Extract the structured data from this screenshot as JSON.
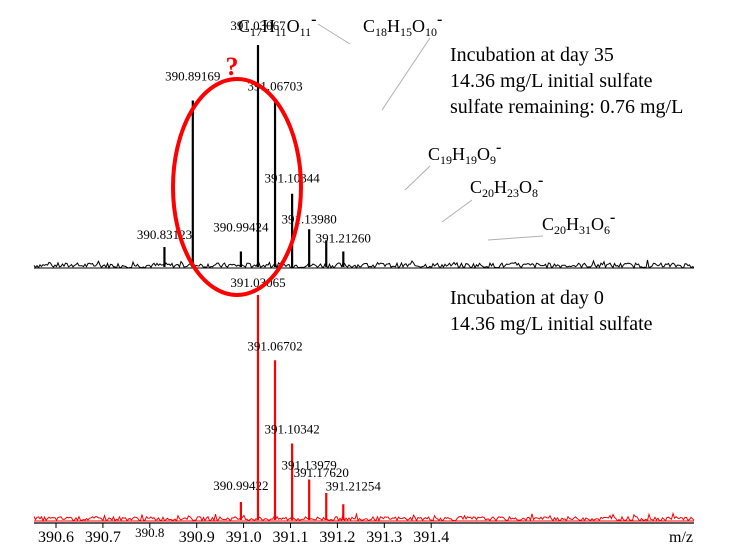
{
  "chart_data": [
    {
      "type": "line",
      "panel": "top",
      "color": "#000000",
      "annotation_lines": [
        "Incubation at day 35",
        "14.36 mg/L initial sulfate",
        "sulfate remaining: 0.76 mg/L"
      ],
      "xlim": [
        390.55,
        391.5
      ],
      "peaks": [
        {
          "mz": 390.83123,
          "rel": 0.09,
          "label": "390.83123"
        },
        {
          "mz": 390.89169,
          "rel": 0.75,
          "label": "390.89169"
        },
        {
          "mz": 390.99424,
          "rel": 0.07,
          "label": "390.99424"
        },
        {
          "mz": 391.03067,
          "rel": 1.0,
          "label": "391.03067"
        },
        {
          "mz": 391.06703,
          "rel": 0.75,
          "label": "391.06703"
        },
        {
          "mz": 391.10344,
          "rel": 0.33,
          "label": "391.10344"
        },
        {
          "mz": 391.1398,
          "rel": 0.17,
          "label": "391.13980"
        },
        {
          "mz": 391.1762,
          "rel": 0.12,
          "label": ""
        },
        {
          "mz": 391.2126,
          "rel": 0.07,
          "label": "391.21260"
        }
      ],
      "formula_labels": [
        {
          "base": "C",
          "parts": [
            [
              "17",
              "H"
            ],
            [
              "11",
              "O"
            ],
            [
              "11",
              "-"
            ]
          ]
        },
        {
          "base": "C",
          "parts": [
            [
              "18",
              "H"
            ],
            [
              "15",
              "O"
            ],
            [
              "10",
              "-"
            ]
          ]
        },
        {
          "base": "C",
          "parts": [
            [
              "19",
              "H"
            ],
            [
              "19",
              "O"
            ],
            [
              "9",
              "-"
            ]
          ]
        },
        {
          "base": "C",
          "parts": [
            [
              "20",
              "H"
            ],
            [
              "23",
              "O"
            ],
            [
              "8",
              "-"
            ]
          ]
        },
        {
          "base": "C",
          "parts": [
            [
              "20",
              "H"
            ],
            [
              "31",
              "O"
            ],
            [
              "6",
              "-"
            ]
          ]
        }
      ],
      "highlight": {
        "mark": "?",
        "color": "#ff0000"
      }
    },
    {
      "type": "line",
      "panel": "bottom",
      "color": "#ff0000",
      "annotation_lines": [
        "Incubation at day 0",
        "14.36 mg/L initial sulfate"
      ],
      "xlim": [
        390.55,
        391.5
      ],
      "peaks": [
        {
          "mz": 390.99422,
          "rel": 0.08,
          "label": "390.99422"
        },
        {
          "mz": 391.03065,
          "rel": 1.0,
          "label": "391.03065"
        },
        {
          "mz": 391.06702,
          "rel": 0.71,
          "label": "391.06702"
        },
        {
          "mz": 391.10342,
          "rel": 0.34,
          "label": "391.10342"
        },
        {
          "mz": 391.13979,
          "rel": 0.18,
          "label": "391.13979"
        },
        {
          "mz": 391.1762,
          "rel": 0.12,
          "label": "391.17620"
        },
        {
          "mz": 391.21254,
          "rel": 0.07,
          "label": "391.21254"
        }
      ]
    }
  ],
  "x_axis": {
    "ticks": [
      {
        "value": 390.6,
        "label": "390.6"
      },
      {
        "value": 390.7,
        "label": "390.7"
      },
      {
        "value": 390.8,
        "label": "390.8"
      },
      {
        "value": 390.9,
        "label": "390.9"
      },
      {
        "value": 391.0,
        "label": "391.0"
      },
      {
        "value": 391.1,
        "label": "391.1"
      },
      {
        "value": 391.2,
        "label": "391.2"
      },
      {
        "value": 391.3,
        "label": "391.3"
      },
      {
        "value": 391.4,
        "label": "391.4"
      }
    ],
    "unit_label": "m/z"
  }
}
